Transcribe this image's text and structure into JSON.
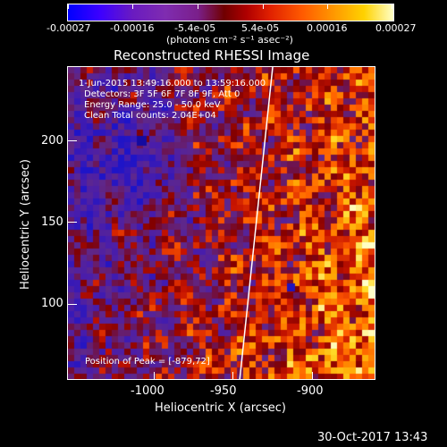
{
  "colorbar": {
    "tick_labels": [
      "-0.00027",
      "-0.00016",
      "-5.4e-05",
      "5.4e-05",
      "0.00016",
      "0.00027"
    ],
    "units": "(photons cm⁻² s⁻¹ asec⁻²)",
    "colors": [
      "#0000ff",
      "#6a1bc0",
      "#7a1f8a",
      "#b00000",
      "#ff5a00",
      "#ffd200",
      "#ffffc8"
    ]
  },
  "plot": {
    "title": "Reconstructed RHESSI Image",
    "annotations": [
      "1-Jun-2015 13:49:16.000 to 13:59:16.000",
      "Detectors: 3F 5F 6F 7F 8F 9F, Att 0",
      "Energy Range: 25.0 - 50.0 keV",
      "Clean     Total counts: 2.04E+04"
    ],
    "peak_label": "Position of Peak = [-879,72]",
    "x_axis": {
      "label": "Heliocentric X (arcsec)",
      "tick_labels": [
        "-1000",
        "-950",
        "-900"
      ],
      "range": [
        -1046,
        -858
      ]
    },
    "y_axis": {
      "label": "Heliocentric Y (arcsec)",
      "tick_labels": [
        "100",
        "150",
        "200"
      ],
      "range": [
        52,
        240
      ]
    }
  },
  "footer": {
    "timestamp": "30-Oct-2017 13:43"
  }
}
